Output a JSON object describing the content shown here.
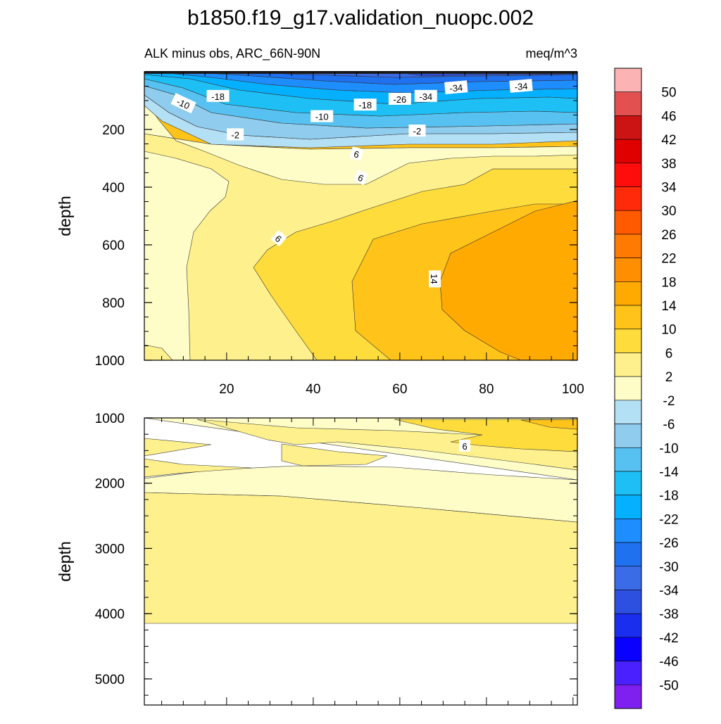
{
  "chart_data": {
    "type": "heatmap",
    "title": "b1850.f19_g17.validation_nuopc.002",
    "subtitle_left": "ALK minus obs, ARC_66N-90N",
    "subtitle_right": "meq/m^3",
    "xlabel": "",
    "ylabel": "depth",
    "x_ticks": [
      20,
      40,
      60,
      80,
      100
    ],
    "xlim": [
      1,
      101
    ],
    "panels": [
      {
        "name": "upper",
        "ylim": [
          0,
          1000
        ],
        "y_ticks": [
          200,
          400,
          600,
          800,
          1000
        ]
      },
      {
        "name": "lower",
        "ylim": [
          1000,
          5400
        ],
        "y_ticks": [
          1000,
          2000,
          3000,
          4000,
          5000
        ]
      }
    ],
    "colorbar": {
      "levels": [
        50,
        46,
        42,
        38,
        34,
        30,
        26,
        22,
        18,
        14,
        10,
        6,
        2,
        -2,
        -6,
        -10,
        -14,
        -18,
        -22,
        -26,
        -30,
        -34,
        -38,
        -42,
        -46,
        -50
      ],
      "colors": [
        "#fcb3b3",
        "#e35050",
        "#cc1414",
        "#e00000",
        "#ff0d0d",
        "#ff2a0a",
        "#ff5a00",
        "#ff7a00",
        "#ff8f00",
        "#ffaa00",
        "#ffc31a",
        "#fddc3c",
        "#fef08c",
        "#fefdc8",
        "#b4e0f6",
        "#8fccee",
        "#57c2f2",
        "#1ebff5",
        "#05b0ff",
        "#1e8dff",
        "#1f71ef",
        "#3a6ce8",
        "#2e50e0",
        "#1a2ef0",
        "#0a00ff",
        "#4a20ff",
        "#8020f0"
      ]
    },
    "contour_labels": [
      {
        "value": "-10",
        "x": 10,
        "depth": 110,
        "rot": 25
      },
      {
        "value": "-18",
        "x": 18,
        "depth": 85,
        "rot": 0
      },
      {
        "value": "-10",
        "x": 42,
        "depth": 155,
        "rot": 0
      },
      {
        "value": "-18",
        "x": 52,
        "depth": 115,
        "rot": 0
      },
      {
        "value": "-26",
        "x": 60,
        "depth": 95,
        "rot": 0
      },
      {
        "value": "-34",
        "x": 66,
        "depth": 85,
        "rot": 0
      },
      {
        "value": "-34",
        "x": 73,
        "depth": 55,
        "rot": -5
      },
      {
        "value": "-34",
        "x": 88,
        "depth": 50,
        "rot": -5
      },
      {
        "value": "-2",
        "x": 22,
        "depth": 218,
        "rot": 0
      },
      {
        "value": "-2",
        "x": 64,
        "depth": 205,
        "rot": 0
      },
      {
        "value": "6",
        "x": 50,
        "depth": 285,
        "rot": 15
      },
      {
        "value": "6",
        "x": 51,
        "depth": 367,
        "rot": 25
      },
      {
        "value": "6",
        "x": 32,
        "depth": 578,
        "rot": 40
      },
      {
        "value": "14",
        "x": 68,
        "depth": 718,
        "rot": 90
      },
      {
        "value": "6",
        "x": 75,
        "depth": 1430,
        "rot": 0
      }
    ]
  }
}
